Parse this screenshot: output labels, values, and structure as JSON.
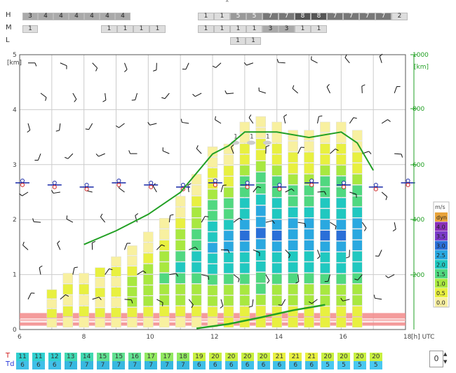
{
  "top_rows": {
    "labels": [
      "H",
      "M",
      "L"
    ],
    "H": {
      "left": [
        "3",
        "4",
        "4",
        "4",
        "4",
        "4",
        "4"
      ],
      "right": [
        "1",
        "1",
        "5",
        "5",
        "7",
        "7",
        "8",
        "8",
        "7",
        "7",
        "7",
        "7",
        "2"
      ]
    },
    "M": {
      "left": [
        "1"
      ],
      "mid": [
        "1",
        "1",
        "1",
        "1"
      ],
      "right": [
        "1",
        "1",
        "1",
        "1",
        "3",
        "3",
        "1",
        "1"
      ]
    },
    "L": {
      "center": [
        "1",
        "1"
      ]
    }
  },
  "chart_data": {
    "type": "bar",
    "x": [
      7.0,
      7.5,
      8.0,
      8.5,
      9.0,
      9.5,
      10.0,
      10.5,
      11.0,
      11.5,
      12.0,
      12.5,
      13.0,
      13.5,
      14.0,
      14.5,
      15.0,
      15.5,
      16.0,
      16.5
    ],
    "bar_top_km": [
      0.14,
      0.2,
      0.2,
      0.22,
      0.26,
      0.3,
      0.35,
      0.4,
      0.48,
      0.56,
      0.66,
      0.67,
      0.75,
      0.77,
      0.75,
      0.72,
      0.72,
      0.75,
      0.75,
      0.72
    ],
    "line_green": {
      "x": [
        8.0,
        9.0,
        10.0,
        11.0,
        12.0,
        12.5,
        13.0,
        14.0,
        15.0,
        16.0,
        16.5,
        17.0
      ],
      "y_km": [
        1.55,
        1.8,
        2.1,
        2.5,
        3.2,
        3.35,
        3.6,
        3.6,
        3.5,
        3.6,
        3.4,
        2.9
      ]
    },
    "line_bottom": {
      "x": [
        11.5,
        12.5,
        13.5,
        14.5,
        15.5
      ],
      "y_km": [
        0.02,
        0.1,
        0.22,
        0.35,
        0.45
      ]
    },
    "xlim": [
      6,
      18
    ],
    "x_ticks": [
      "6",
      "8",
      "10",
      "12",
      "14",
      "16",
      "18"
    ],
    "x_unit": "[h] UTC",
    "ylim_km": [
      0,
      5
    ],
    "y_ticks_km": [
      "0",
      "1",
      "2",
      "3",
      "4",
      "5"
    ],
    "y_unit_left": "[km]",
    "y2_ticks": [
      "200",
      "400",
      "600",
      "800",
      "1000"
    ],
    "y2_unit": "[km]",
    "wind_levels": [
      "1",
      "1",
      "1"
    ],
    "legend": {
      "title": "m/s",
      "items": [
        {
          "label": "dyn",
          "color": "#e8a33a"
        },
        {
          "label": "4.0",
          "color": "#8a2fb8"
        },
        {
          "label": "3.5",
          "color": "#7a3ac8"
        },
        {
          "label": "3.0",
          "color": "#2a6fd8"
        },
        {
          "label": "2.5",
          "color": "#2aa8e0"
        },
        {
          "label": "2.0",
          "color": "#20c8c0"
        },
        {
          "label": "1.5",
          "color": "#50d880"
        },
        {
          "label": "1.0",
          "color": "#a8e840"
        },
        {
          "label": "0.5",
          "color": "#e8f040"
        },
        {
          "label": "0.0",
          "color": "#f8f0a0"
        }
      ]
    }
  },
  "bottom_rows": {
    "T_label": "T",
    "Td_label": "Td",
    "T": [
      "11",
      "11",
      "12",
      "13",
      "14",
      "15",
      "15",
      "16",
      "17",
      "17",
      "18",
      "19",
      "20",
      "20",
      "20",
      "20",
      "21",
      "21",
      "21",
      "20",
      "20",
      "20",
      "20"
    ],
    "Td": [
      "6",
      "6",
      "6",
      "7",
      "7",
      "7",
      "7",
      "7",
      "7",
      "7",
      "7",
      "6",
      "6",
      "6",
      "6",
      "6",
      "6",
      "6",
      "6",
      "5",
      "5",
      "5",
      "5"
    ],
    "spinner": "0"
  }
}
